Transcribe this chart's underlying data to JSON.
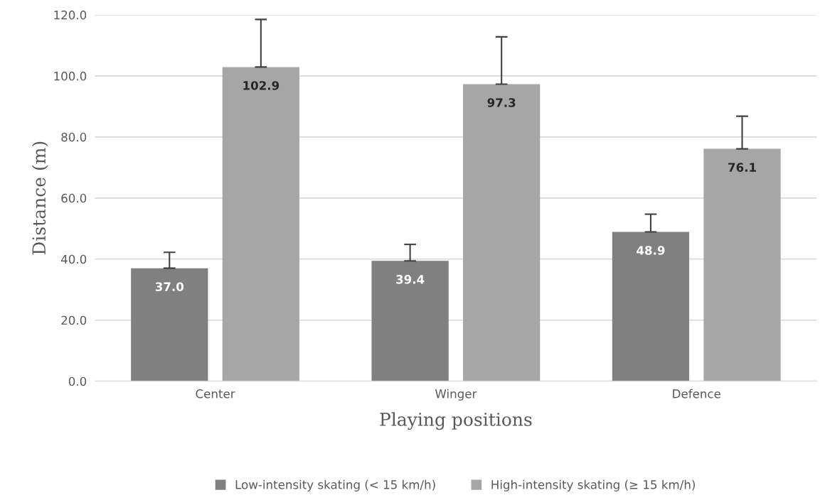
{
  "chart_data": {
    "type": "bar",
    "xlabel": "Playing positions",
    "ylabel": "Distance (m)",
    "categories": [
      "Center",
      "Winger",
      "Defence"
    ],
    "series": [
      {
        "name": "Low-intensity skating (< 15 km/h)",
        "color": "#808080",
        "values": [
          37.0,
          39.4,
          48.9
        ],
        "value_labels": [
          "37.0",
          "39.4",
          "48.9"
        ],
        "errors": [
          5.2,
          5.4,
          5.8
        ]
      },
      {
        "name": "High-intensity skating (≥ 15 km/h)",
        "color": "#a6a6a6",
        "values": [
          102.9,
          97.3,
          76.1
        ],
        "value_labels": [
          "102.9",
          "97.3",
          "76.1"
        ],
        "errors": [
          15.6,
          15.5,
          10.7
        ]
      }
    ],
    "ylim": [
      0,
      120
    ],
    "yticks": [
      {
        "value": 0,
        "label": "0.0"
      },
      {
        "value": 20,
        "label": "20.0"
      },
      {
        "value": 40,
        "label": "40.0"
      },
      {
        "value": 60,
        "label": "60.0"
      },
      {
        "value": 80,
        "label": "80.0"
      },
      {
        "value": 100,
        "label": "100.0"
      },
      {
        "value": 120,
        "label": "120.0"
      }
    ],
    "grid": "y",
    "legend": "bottom"
  }
}
